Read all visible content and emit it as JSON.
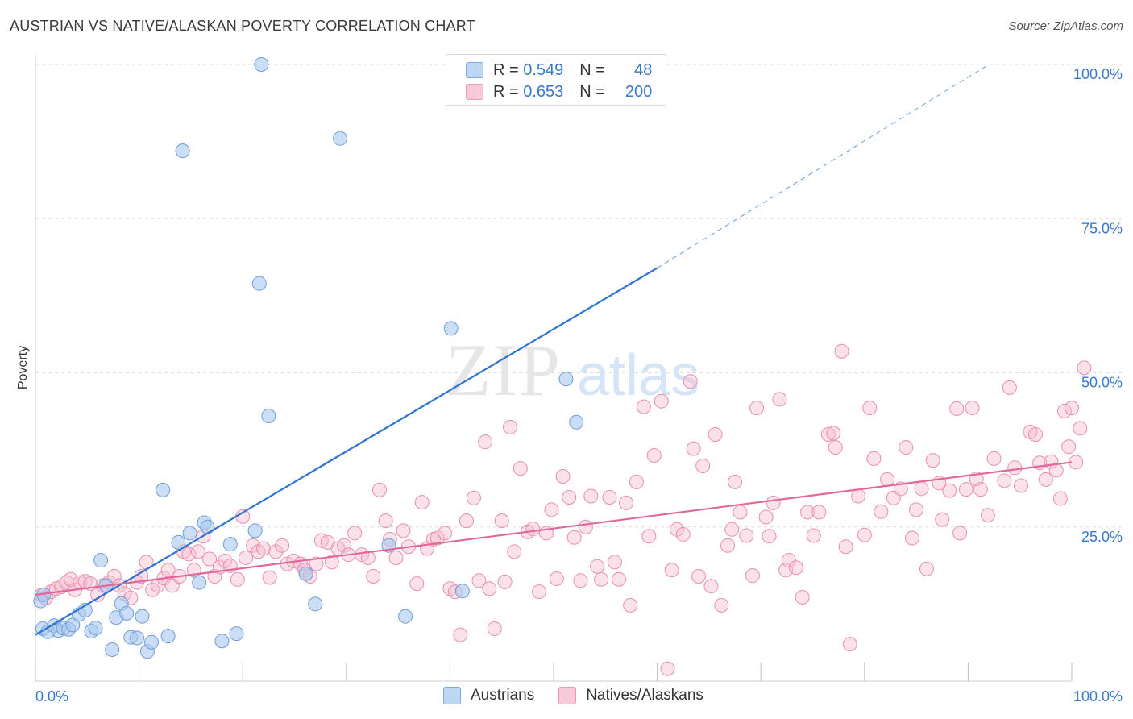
{
  "title": "AUSTRIAN VS NATIVE/ALASKAN POVERTY CORRELATION CHART",
  "source": "Source: ZipAtlas.com",
  "watermark": {
    "zip": "ZIP",
    "atlas": "atlas"
  },
  "legend": {
    "austrians": {
      "r_label": "R =",
      "r_value": "0.549",
      "n_label": "N =",
      "n_value": "48"
    },
    "natives": {
      "r_label": "R =",
      "r_value": "0.653",
      "n_label": "N =",
      "n_value": "200"
    }
  },
  "bottom_legend": {
    "austrians": "Austrians",
    "natives": "Natives/Alaskans"
  },
  "colors": {
    "austrians_fill": "#a9c8ef",
    "austrians_stroke": "#6f9fd8",
    "austrians_line": "#2e74d0",
    "natives_fill": "#f7bcd0",
    "natives_stroke": "#ea8fae",
    "natives_line": "#e0689a",
    "grid": "#dcdcdc",
    "tick_label": "#3a78c9"
  },
  "chart_data": {
    "type": "scatter",
    "title": "AUSTRIAN VS NATIVE/ALASKAN POVERTY CORRELATION CHART",
    "xlabel": "",
    "ylabel": "Poverty",
    "xlim": [
      0,
      100
    ],
    "ylim": [
      0,
      100
    ],
    "x_tick_labels": [
      "0.0%",
      "100.0%"
    ],
    "y_tick_labels": [
      "25.0%",
      "50.0%",
      "75.0%",
      "100.0%"
    ],
    "y_ticks": [
      25,
      50,
      75,
      100
    ],
    "x_minor_ticks": [
      0,
      10,
      20,
      30,
      40,
      50,
      60,
      70,
      80,
      90,
      100
    ],
    "grid": true,
    "legend_position": "top-center",
    "series": [
      {
        "name": "Austrians",
        "trend": {
          "x0": 0,
          "y0": 7.5,
          "x1": 60,
          "y1": 67,
          "dashed_to": [
            92,
            100
          ]
        },
        "points": [
          [
            0.5,
            13
          ],
          [
            0.8,
            14
          ],
          [
            0.7,
            8.5
          ],
          [
            1.2,
            8
          ],
          [
            1.8,
            9
          ],
          [
            2.2,
            8.2
          ],
          [
            2.7,
            8.6
          ],
          [
            3.2,
            8.4
          ],
          [
            3.6,
            9.1
          ],
          [
            4.2,
            10.8
          ],
          [
            4.8,
            11.5
          ],
          [
            5.4,
            8.1
          ],
          [
            5.8,
            8.6
          ],
          [
            6.3,
            19.6
          ],
          [
            6.8,
            15.5
          ],
          [
            7.4,
            5.1
          ],
          [
            7.8,
            10.3
          ],
          [
            8.3,
            12.6
          ],
          [
            8.8,
            11
          ],
          [
            9.2,
            7.1
          ],
          [
            9.8,
            7
          ],
          [
            10.3,
            10.5
          ],
          [
            10.8,
            4.8
          ],
          [
            11.2,
            6.3
          ],
          [
            12.3,
            31
          ],
          [
            12.8,
            7.3
          ],
          [
            13.8,
            22.5
          ],
          [
            14.2,
            86
          ],
          [
            14.9,
            24
          ],
          [
            15.8,
            16
          ],
          [
            16.3,
            25.7
          ],
          [
            16.6,
            25
          ],
          [
            18,
            6.5
          ],
          [
            18.8,
            22.2
          ],
          [
            19.4,
            7.7
          ],
          [
            21.2,
            24.4
          ],
          [
            21.6,
            64.5
          ],
          [
            21.8,
            100
          ],
          [
            22.5,
            43
          ],
          [
            26.1,
            17.4
          ],
          [
            27,
            12.5
          ],
          [
            29.4,
            88
          ],
          [
            34.1,
            22
          ],
          [
            35.7,
            10.5
          ],
          [
            40.1,
            57.2
          ],
          [
            41.2,
            14.6
          ],
          [
            51.2,
            49
          ],
          [
            52.2,
            42
          ]
        ]
      },
      {
        "name": "Natives/Alaskans",
        "trend": {
          "x0": 0,
          "y0": 14,
          "x1": 100,
          "y1": 35.5
        },
        "points": [
          [
            0.6,
            14
          ],
          [
            1,
            13.5
          ],
          [
            1.5,
            14.5
          ],
          [
            2,
            15
          ],
          [
            2.5,
            15.3
          ],
          [
            3,
            16
          ],
          [
            3.4,
            16.5
          ],
          [
            3.8,
            14.8
          ],
          [
            4.3,
            16
          ],
          [
            4.8,
            16.2
          ],
          [
            5.3,
            15.8
          ],
          [
            6,
            14
          ],
          [
            6.5,
            15.5
          ],
          [
            7.1,
            16
          ],
          [
            7.6,
            17
          ],
          [
            8.1,
            15.5
          ],
          [
            8.6,
            14.2
          ],
          [
            9.2,
            13.5
          ],
          [
            9.8,
            16
          ],
          [
            10.2,
            17
          ],
          [
            10.7,
            19.3
          ],
          [
            11.3,
            14.8
          ],
          [
            11.8,
            15.5
          ],
          [
            12.4,
            16.7
          ],
          [
            12.8,
            18
          ],
          [
            13.2,
            15.5
          ],
          [
            13.9,
            17
          ],
          [
            14.3,
            21
          ],
          [
            14.8,
            20.6
          ],
          [
            15.3,
            18
          ],
          [
            15.7,
            21
          ],
          [
            16.2,
            23.5
          ],
          [
            16.8,
            19.8
          ],
          [
            17.3,
            17
          ],
          [
            17.8,
            18.5
          ],
          [
            18.3,
            19.5
          ],
          [
            18.8,
            18.7
          ],
          [
            19.5,
            16.5
          ],
          [
            20,
            26.7
          ],
          [
            20.3,
            20
          ],
          [
            21,
            22
          ],
          [
            21.5,
            21
          ],
          [
            22,
            21.5
          ],
          [
            22.6,
            16.8
          ],
          [
            23.2,
            21
          ],
          [
            23.8,
            22
          ],
          [
            24.3,
            19
          ],
          [
            24.9,
            19.5
          ],
          [
            25.6,
            19
          ],
          [
            26,
            18
          ],
          [
            26.5,
            17
          ],
          [
            27.1,
            19
          ],
          [
            27.6,
            22.8
          ],
          [
            28.2,
            22.5
          ],
          [
            28.6,
            19.3
          ],
          [
            29.2,
            21.5
          ],
          [
            29.8,
            22
          ],
          [
            30.2,
            20.5
          ],
          [
            30.8,
            24
          ],
          [
            31.5,
            20.5
          ],
          [
            32.1,
            20
          ],
          [
            32.6,
            17
          ],
          [
            33.2,
            31
          ],
          [
            33.8,
            26
          ],
          [
            34.2,
            23
          ],
          [
            34.8,
            20
          ],
          [
            35.5,
            24.4
          ],
          [
            36,
            21.8
          ],
          [
            36.8,
            15.8
          ],
          [
            37.3,
            29
          ],
          [
            37.8,
            21.5
          ],
          [
            38.4,
            23
          ],
          [
            38.8,
            23.2
          ],
          [
            39.5,
            24
          ],
          [
            40,
            15
          ],
          [
            40.5,
            14.5
          ],
          [
            41,
            7.5
          ],
          [
            41.6,
            26
          ],
          [
            42.3,
            29.7
          ],
          [
            42.8,
            16.3
          ],
          [
            43.4,
            38.8
          ],
          [
            43.8,
            15
          ],
          [
            44.3,
            8.5
          ],
          [
            45,
            26
          ],
          [
            45.3,
            16.1
          ],
          [
            45.8,
            41.2
          ],
          [
            46.2,
            21
          ],
          [
            46.8,
            34.5
          ],
          [
            47.5,
            24.2
          ],
          [
            48,
            24.7
          ],
          [
            48.6,
            14.5
          ],
          [
            49.3,
            24
          ],
          [
            49.8,
            27.8
          ],
          [
            50.3,
            16.6
          ],
          [
            50.9,
            33.2
          ],
          [
            51.5,
            29.8
          ],
          [
            52,
            23.3
          ],
          [
            52.6,
            16.3
          ],
          [
            53.1,
            25
          ],
          [
            53.6,
            30
          ],
          [
            54.2,
            18.6
          ],
          [
            54.6,
            16.5
          ],
          [
            55.4,
            29.8
          ],
          [
            55.9,
            19.3
          ],
          [
            56.3,
            16.5
          ],
          [
            57,
            28.9
          ],
          [
            57.4,
            12.3
          ],
          [
            58,
            32.3
          ],
          [
            58.7,
            44.5
          ],
          [
            59.2,
            23.5
          ],
          [
            59.7,
            36.6
          ],
          [
            60.4,
            45.4
          ],
          [
            61,
            2
          ],
          [
            61.4,
            18
          ],
          [
            61.9,
            24.6
          ],
          [
            62.5,
            23.8
          ],
          [
            63.2,
            48.6
          ],
          [
            63.5,
            37.7
          ],
          [
            64,
            17
          ],
          [
            64.4,
            34.9
          ],
          [
            65.2,
            15.4
          ],
          [
            65.6,
            40
          ],
          [
            66.2,
            12.3
          ],
          [
            66.8,
            22
          ],
          [
            67.2,
            24.6
          ],
          [
            67.5,
            32.3
          ],
          [
            68,
            27.4
          ],
          [
            68.6,
            23.6
          ],
          [
            69.2,
            17.1
          ],
          [
            69.6,
            44.3
          ],
          [
            70.5,
            26.6
          ],
          [
            70.8,
            23.5
          ],
          [
            71.2,
            28.9
          ],
          [
            71.8,
            45.7
          ],
          [
            72.4,
            18
          ],
          [
            72.7,
            19.6
          ],
          [
            73.4,
            18.4
          ],
          [
            74,
            13.6
          ],
          [
            74.5,
            27.4
          ],
          [
            75.1,
            23.6
          ],
          [
            75.6,
            27.4
          ],
          [
            76.5,
            40
          ],
          [
            77,
            40.2
          ],
          [
            77.2,
            37.9
          ],
          [
            77.8,
            53.5
          ],
          [
            78.2,
            21.8
          ],
          [
            78.6,
            6
          ],
          [
            79.4,
            30
          ],
          [
            80,
            23.7
          ],
          [
            80.5,
            44.3
          ],
          [
            80.9,
            36.1
          ],
          [
            81.6,
            27.5
          ],
          [
            82.2,
            32.7
          ],
          [
            82.8,
            29.7
          ],
          [
            83.5,
            31.2
          ],
          [
            84,
            37.9
          ],
          [
            84.6,
            23.2
          ],
          [
            85,
            27.8
          ],
          [
            85.5,
            31.2
          ],
          [
            86,
            18.2
          ],
          [
            86.6,
            35.8
          ],
          [
            87.2,
            32.1
          ],
          [
            87.5,
            26.2
          ],
          [
            88.2,
            30.9
          ],
          [
            88.9,
            44.2
          ],
          [
            89.2,
            24
          ],
          [
            89.8,
            31.1
          ],
          [
            90.4,
            44.3
          ],
          [
            90.8,
            32.8
          ],
          [
            91.2,
            31.1
          ],
          [
            91.9,
            26.9
          ],
          [
            92.5,
            36.1
          ],
          [
            93.5,
            32.5
          ],
          [
            94,
            47.6
          ],
          [
            94.5,
            34.6
          ],
          [
            95.1,
            31.7
          ],
          [
            96,
            40.4
          ],
          [
            96.5,
            40
          ],
          [
            96.9,
            35.4
          ],
          [
            97.5,
            32.7
          ],
          [
            98,
            35.6
          ],
          [
            98.5,
            34.2
          ],
          [
            98.9,
            29.6
          ],
          [
            99.3,
            43.8
          ],
          [
            99.7,
            38
          ],
          [
            100,
            44.3
          ],
          [
            100.4,
            35.5
          ],
          [
            100.8,
            41
          ],
          [
            101.2,
            50.8
          ]
        ]
      }
    ]
  }
}
